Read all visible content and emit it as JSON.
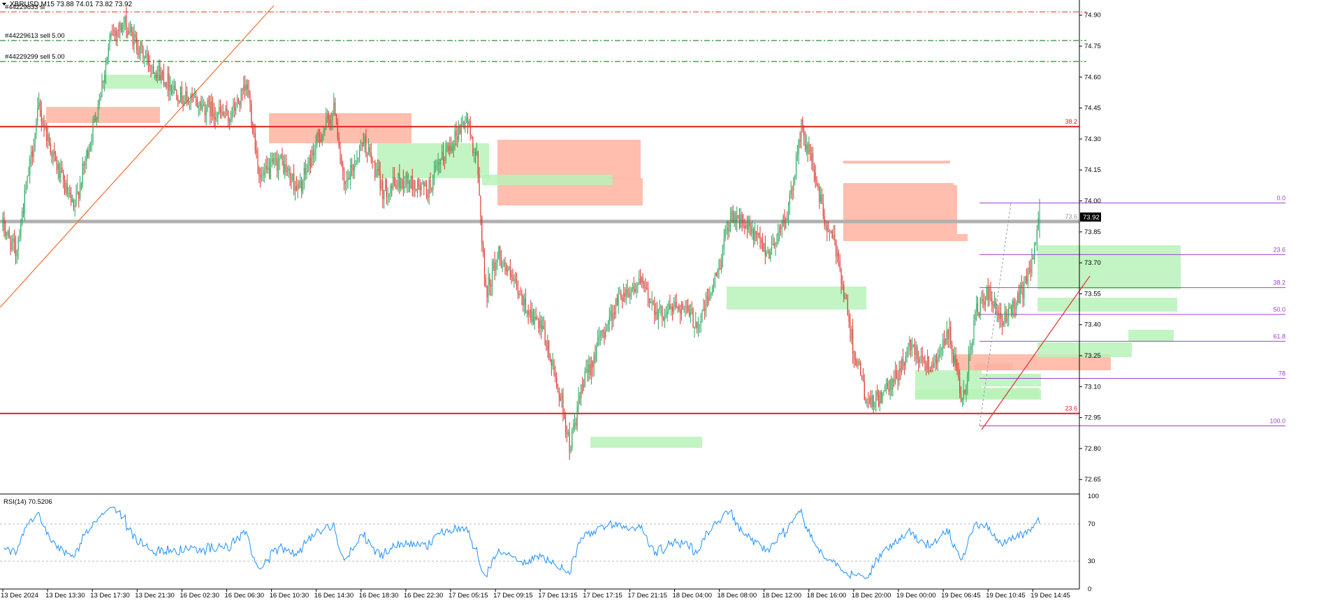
{
  "window": {
    "symbol_header": "XBRUSD,M15  73.88 74.01 73.82 73.92"
  },
  "orders": [
    {
      "label": "#44229833 sl",
      "line_color": "#e8603c"
    },
    {
      "label": "#44229613 sell 5.00",
      "line_color": "#2e8b2e"
    },
    {
      "label": "#44229299 sell 5.00",
      "line_color": "#2e8b2e"
    }
  ],
  "price_axis": {
    "ticks": [
      "74.90",
      "74.75",
      "74.60",
      "74.45",
      "74.30",
      "74.15",
      "74.00",
      "73.85",
      "73.70",
      "73.55",
      "73.40",
      "73.25",
      "73.10",
      "72.95",
      "72.80",
      "72.65"
    ],
    "current_price": "73.92",
    "current_color": "#000000"
  },
  "time_axis": {
    "ticks": [
      "13 Dec 2024",
      "13 Dec 13:30",
      "13 Dec 17:30",
      "13 Dec 21:30",
      "16 Dec 02:30",
      "16 Dec 06:30",
      "16 Dec 10:30",
      "16 Dec 14:30",
      "16 Dec 18:30",
      "16 Dec 22:30",
      "17 Dec 05:15",
      "17 Dec 09:15",
      "17 Dec 13:15",
      "17 Dec 17:15",
      "17 Dec 21:15",
      "18 Dec 04:00",
      "18 Dec 08:00",
      "18 Dec 12:00",
      "18 Dec 16:00",
      "18 Dec 20:00",
      "19 Dec 00:00",
      "19 Dec 06:45",
      "19 Dec 10:45",
      "19 Dec 14:45"
    ]
  },
  "horizontal_levels": [
    {
      "price": 74.36,
      "label": "38.2",
      "color": "#e0201e"
    },
    {
      "price": 72.97,
      "label": "23.6",
      "color": "#e0201e"
    },
    {
      "price": 73.9,
      "label": "73.6",
      "color": "#b0b0b0"
    }
  ],
  "fibonacci": {
    "color": "#a040d0",
    "levels": [
      {
        "label": "0.0",
        "price": 73.99
      },
      {
        "label": "23.6",
        "price": 73.74
      },
      {
        "label": "38.2",
        "price": 73.58
      },
      {
        "label": "50.0",
        "price": 73.45
      },
      {
        "label": "61.8",
        "price": 73.32
      },
      {
        "label": "78",
        "price": 73.14
      },
      {
        "label": "100.0",
        "price": 72.91
      }
    ]
  },
  "indicator": {
    "title": "RSI(14) 70.5206",
    "value": 70.5206,
    "levels": [
      "100",
      "70",
      "30",
      "0"
    ],
    "line_color": "#1e90ff"
  },
  "colors": {
    "bull": "#26a65b",
    "bear": "#e0302a",
    "supply_zone": "#ffb3a0",
    "demand_zone": "#b8f2b8",
    "trendline": "#f07030",
    "background": "#ffffff",
    "axis": "#000000"
  },
  "chart_data": {
    "type": "candlestick",
    "symbol": "XBRUSD",
    "timeframe": "M15",
    "last": {
      "open": 73.88,
      "high": 74.01,
      "low": 73.82,
      "close": 73.92
    },
    "ylim": [
      72.6,
      74.96
    ],
    "path_keypoints": [
      [
        0,
        73.88
      ],
      [
        10,
        73.75
      ],
      [
        18,
        74.05
      ],
      [
        28,
        74.45
      ],
      [
        40,
        74.2
      ],
      [
        55,
        73.95
      ],
      [
        70,
        74.35
      ],
      [
        85,
        74.82
      ],
      [
        95,
        74.85
      ],
      [
        110,
        74.7
      ],
      [
        125,
        74.6
      ],
      [
        140,
        74.5
      ],
      [
        160,
        74.45
      ],
      [
        175,
        74.4
      ],
      [
        190,
        74.55
      ],
      [
        200,
        74.1
      ],
      [
        215,
        74.2
      ],
      [
        230,
        74.05
      ],
      [
        245,
        74.3
      ],
      [
        258,
        74.45
      ],
      [
        265,
        74.05
      ],
      [
        280,
        74.3
      ],
      [
        295,
        74.05
      ],
      [
        310,
        74.1
      ],
      [
        330,
        74.05
      ],
      [
        345,
        74.25
      ],
      [
        360,
        74.4
      ],
      [
        368,
        74.2
      ],
      [
        375,
        73.55
      ],
      [
        385,
        73.75
      ],
      [
        400,
        73.55
      ],
      [
        420,
        73.35
      ],
      [
        435,
        73.0
      ],
      [
        440,
        72.8
      ],
      [
        450,
        73.1
      ],
      [
        465,
        73.35
      ],
      [
        480,
        73.55
      ],
      [
        495,
        73.6
      ],
      [
        510,
        73.45
      ],
      [
        525,
        73.5
      ],
      [
        540,
        73.4
      ],
      [
        555,
        73.65
      ],
      [
        565,
        73.95
      ],
      [
        580,
        73.85
      ],
      [
        595,
        73.75
      ],
      [
        610,
        73.95
      ],
      [
        620,
        74.35
      ],
      [
        630,
        74.15
      ],
      [
        638,
        73.9
      ],
      [
        648,
        73.75
      ],
      [
        660,
        73.3
      ],
      [
        672,
        73.0
      ],
      [
        690,
        73.1
      ],
      [
        705,
        73.3
      ],
      [
        720,
        73.2
      ],
      [
        735,
        73.35
      ],
      [
        745,
        73.0
      ],
      [
        755,
        73.45
      ],
      [
        765,
        73.55
      ],
      [
        775,
        73.4
      ],
      [
        785,
        73.5
      ],
      [
        795,
        73.6
      ],
      [
        805,
        73.92
      ]
    ]
  }
}
